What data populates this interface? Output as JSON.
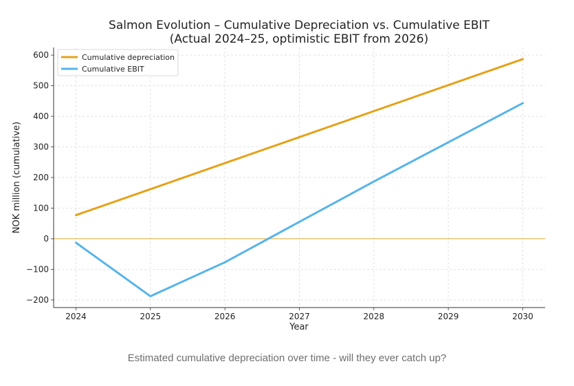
{
  "chart_data": {
    "type": "line",
    "title": "Salmon Evolution – Cumulative Depreciation vs. Cumulative EBIT",
    "subtitle": "(Actual 2024–25, optimistic EBIT from 2026)",
    "xlabel": "Year",
    "ylabel": "NOK million (cumulative)",
    "x": [
      2024,
      2025,
      2026,
      2027,
      2028,
      2029,
      2030
    ],
    "xlim": [
      2023.7,
      2030.3
    ],
    "ylim": [
      -225,
      625
    ],
    "yticks": [
      -200,
      -100,
      0,
      100,
      200,
      300,
      400,
      500,
      600
    ],
    "ytick_labels": [
      "−200",
      "−100",
      "0",
      "100",
      "200",
      "300",
      "400",
      "500",
      "600"
    ],
    "grid": true,
    "legend_position": "top-left",
    "reference_line": {
      "y": 0,
      "color": "#e3b23c"
    },
    "series": [
      {
        "name": "Cumulative depreciation",
        "color": "#e6a117",
        "values": [
          77,
          162,
          247,
          332,
          417,
          502,
          587
        ]
      },
      {
        "name": "Cumulative EBIT",
        "color": "#56b4e9",
        "values": [
          -13,
          -188,
          -77,
          55,
          187,
          315,
          443
        ]
      }
    ]
  },
  "caption": "Estimated cumulative depreciation over time - will they ever catch up?"
}
